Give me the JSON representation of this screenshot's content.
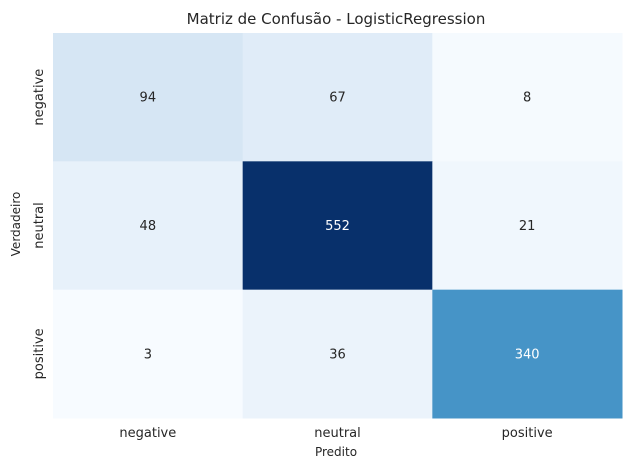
{
  "chart_data": {
    "type": "heatmap",
    "title": "Matriz de Confusão - LogisticRegression",
    "xlabel": "Predito",
    "ylabel": "Verdadeiro",
    "x_categories": [
      "negative",
      "neutral",
      "positive"
    ],
    "y_categories": [
      "negative",
      "neutral",
      "positive"
    ],
    "values": [
      [
        94,
        67,
        8
      ],
      [
        48,
        552,
        21
      ],
      [
        3,
        36,
        340
      ]
    ],
    "colormap": "Blues",
    "colorbar": false,
    "value_range": [
      3,
      552
    ]
  }
}
